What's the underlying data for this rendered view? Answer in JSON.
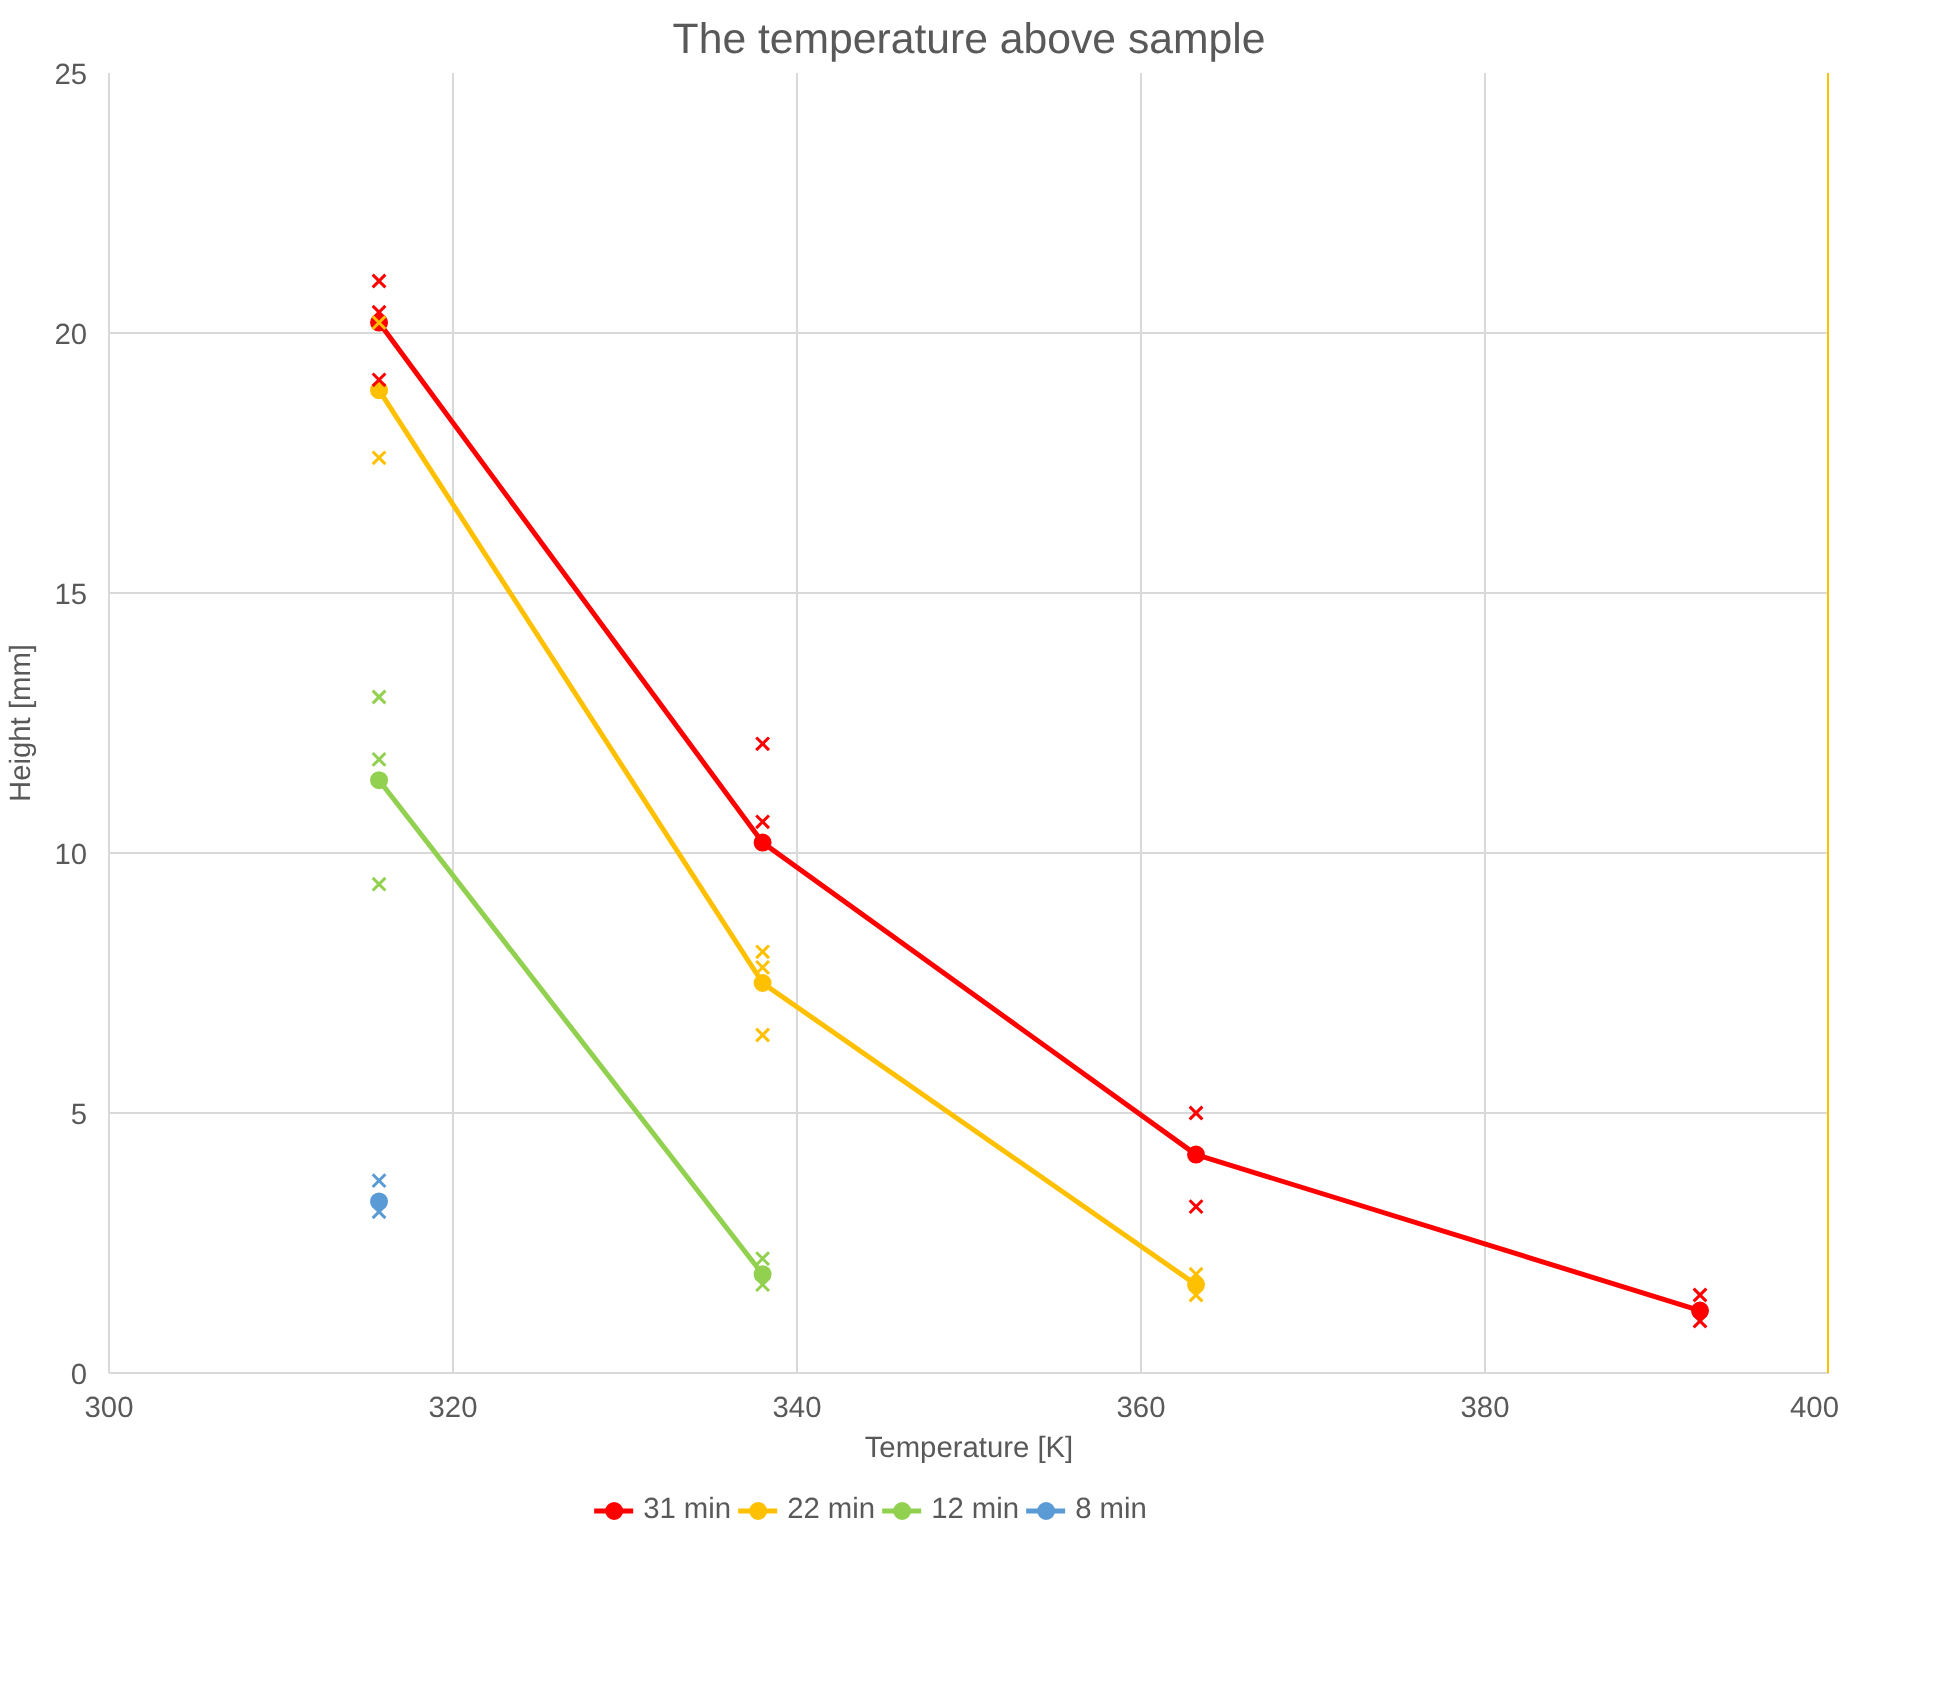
{
  "chart_data": {
    "type": "line",
    "title": "The temperature above sample",
    "xlabel": "Temperature [K]",
    "ylabel": "Height [mm]",
    "xlim": [
      300,
      400
    ],
    "ylim": [
      0,
      25
    ],
    "xticks": [
      300,
      320,
      340,
      360,
      380,
      400
    ],
    "yticks": [
      0,
      5,
      10,
      15,
      20,
      25
    ],
    "grid": true,
    "legend": "bottom",
    "marker": "circle",
    "line_style": "solid",
    "series": [
      {
        "name": "31 min",
        "color": "#ff0000",
        "x": [
          315.7,
          338.0,
          363.2,
          392.5
        ],
        "values": [
          20.2,
          10.2,
          4.2,
          1.2
        ]
      },
      {
        "name": "22 min",
        "color": "#ffc000",
        "x": [
          315.7,
          338.0,
          363.2
        ],
        "values": [
          18.9,
          7.5,
          1.7
        ]
      },
      {
        "name": "12 min",
        "color": "#92d050",
        "x": [
          315.7,
          338.0
        ],
        "values": [
          11.4,
          1.9
        ]
      },
      {
        "name": "8 min",
        "color": "#5b9bd5",
        "x": [
          315.7
        ],
        "values": [
          3.3
        ]
      },
      {
        "type": "scatter",
        "marker": "cross",
        "color": "#ff0000",
        "x": [
          315.7,
          315.7,
          315.7,
          338.0,
          338.0,
          363.2,
          363.2,
          392.5,
          392.5
        ],
        "values": [
          21.0,
          20.4,
          19.1,
          12.1,
          10.6,
          5.0,
          3.2,
          1.5,
          1.0
        ]
      },
      {
        "type": "scatter",
        "marker": "cross",
        "color": "#ffc000",
        "x": [
          315.7,
          315.7,
          338.0,
          338.0,
          338.0,
          363.2,
          363.2
        ],
        "values": [
          20.2,
          17.6,
          8.1,
          7.8,
          6.5,
          1.9,
          1.5
        ]
      },
      {
        "type": "scatter",
        "marker": "cross",
        "color": "#92d050",
        "x": [
          315.7,
          315.7,
          315.7,
          338.0,
          338.0
        ],
        "values": [
          13.0,
          11.8,
          9.4,
          2.2,
          1.7
        ]
      },
      {
        "type": "scatter",
        "marker": "cross",
        "color": "#5b9bd5",
        "x": [
          315.7,
          315.7
        ],
        "values": [
          3.7,
          3.1
        ]
      }
    ],
    "ref_lines": [
      {
        "axis": "x",
        "value": 400,
        "color": "#ffc000",
        "line_style": "solid"
      }
    ]
  }
}
